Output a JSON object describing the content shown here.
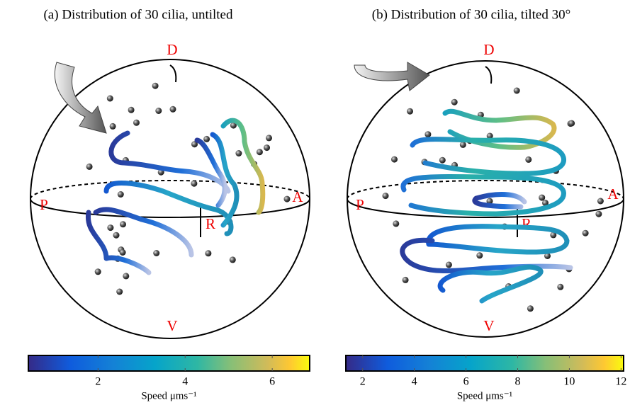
{
  "chart_data": [
    {
      "type": "colorbar",
      "title": "(a) Distribution of 30 cilia, untilted",
      "xlabel": "Speed μms⁻¹",
      "xlim": [
        0.4,
        6.86
      ],
      "xticks": [
        2,
        4,
        6
      ],
      "annotations": [
        "D",
        "V",
        "A",
        "P",
        "R"
      ]
    },
    {
      "type": "colorbar",
      "title": "(b) Distribution of 30 cilia, tilted 30°",
      "xlabel": "Speed μms⁻¹",
      "xlim": [
        1.35,
        12.1
      ],
      "xticks": [
        2,
        4,
        6,
        8,
        10,
        12
      ],
      "annotations": [
        "D",
        "V",
        "A",
        "P",
        "R"
      ]
    }
  ]
}
